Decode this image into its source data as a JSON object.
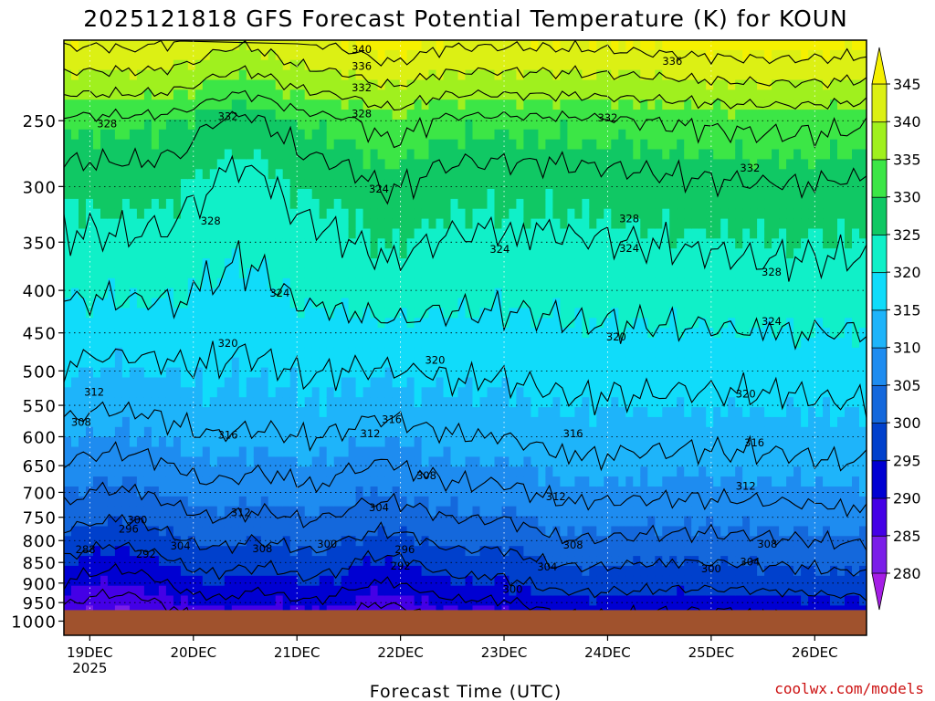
{
  "chart_data": {
    "type": "heatmap",
    "title": "2025121818 GFS Forecast Potential Temperature (K) for KOUN",
    "xlabel": "Forecast Time (UTC)",
    "ylabel": "",
    "credit": "coolwx.com/models",
    "x_ticks": [
      {
        "label": "19DEC",
        "sublabel": "2025"
      },
      {
        "label": "20DEC",
        "sublabel": ""
      },
      {
        "label": "21DEC",
        "sublabel": ""
      },
      {
        "label": "22DEC",
        "sublabel": ""
      },
      {
        "label": "23DEC",
        "sublabel": ""
      },
      {
        "label": "24DEC",
        "sublabel": ""
      },
      {
        "label": "25DEC",
        "sublabel": ""
      },
      {
        "label": "26DEC",
        "sublabel": ""
      }
    ],
    "x_range_hours": [
      -6,
      180
    ],
    "x_tick_hours": [
      0,
      24,
      48,
      72,
      96,
      120,
      144,
      168
    ],
    "y_ticks": [
      250,
      300,
      350,
      400,
      450,
      500,
      550,
      600,
      650,
      700,
      750,
      800,
      850,
      900,
      950,
      1000
    ],
    "y_axis": "pressure (hPa), log scale, reversed",
    "y_range_hpa": [
      200,
      1040
    ],
    "surface_pressure_hpa": 970,
    "colorbar": {
      "levels": [
        280,
        285,
        290,
        295,
        300,
        305,
        310,
        315,
        320,
        325,
        330,
        335,
        340,
        345
      ],
      "colors": [
        "#a51ee6",
        "#7a1ee8",
        "#4400e6",
        "#0000d2",
        "#0040cc",
        "#1468dc",
        "#1e8cf0",
        "#1eb4fa",
        "#10dcfa",
        "#10f0c8",
        "#10c864",
        "#3ce646",
        "#a0f01e",
        "#dcf014",
        "#f5f000"
      ],
      "extend": "both"
    },
    "contour_interval_K": 4,
    "contour_labels": [
      {
        "value": "340",
        "hour": 63,
        "p": 205
      },
      {
        "value": "336",
        "hour": 63,
        "p": 215
      },
      {
        "value": "336",
        "hour": 135,
        "p": 212
      },
      {
        "value": "332",
        "hour": 63,
        "p": 228
      },
      {
        "value": "332",
        "hour": 32,
        "p": 247
      },
      {
        "value": "332",
        "hour": 120,
        "p": 248
      },
      {
        "value": "332",
        "hour": 153,
        "p": 285
      },
      {
        "value": "328",
        "hour": 4,
        "p": 252
      },
      {
        "value": "328",
        "hour": 63,
        "p": 245
      },
      {
        "value": "328",
        "hour": 28,
        "p": 330
      },
      {
        "value": "328",
        "hour": 125,
        "p": 328
      },
      {
        "value": "328",
        "hour": 158,
        "p": 380
      },
      {
        "value": "324",
        "hour": 67,
        "p": 302
      },
      {
        "value": "324",
        "hour": 95,
        "p": 357
      },
      {
        "value": "324",
        "hour": 125,
        "p": 356
      },
      {
        "value": "324",
        "hour": 44,
        "p": 403
      },
      {
        "value": "324",
        "hour": 158,
        "p": 436
      },
      {
        "value": "320",
        "hour": 32,
        "p": 463
      },
      {
        "value": "320",
        "hour": 80,
        "p": 485
      },
      {
        "value": "320",
        "hour": 122,
        "p": 455
      },
      {
        "value": "320",
        "hour": 152,
        "p": 533
      },
      {
        "value": "316",
        "hour": 70,
        "p": 572
      },
      {
        "value": "316",
        "hour": 32,
        "p": 597
      },
      {
        "value": "316",
        "hour": 112,
        "p": 595
      },
      {
        "value": "316",
        "hour": 154,
        "p": 610
      },
      {
        "value": "312",
        "hour": 1,
        "p": 530
      },
      {
        "value": "312",
        "hour": 65,
        "p": 595
      },
      {
        "value": "312",
        "hour": 35,
        "p": 740
      },
      {
        "value": "312",
        "hour": 108,
        "p": 708
      },
      {
        "value": "312",
        "hour": 152,
        "p": 688
      },
      {
        "value": "308",
        "hour": -2,
        "p": 576
      },
      {
        "value": "308",
        "hour": 78,
        "p": 668
      },
      {
        "value": "308",
        "hour": 40,
        "p": 818
      },
      {
        "value": "308",
        "hour": 112,
        "p": 810
      },
      {
        "value": "308",
        "hour": 157,
        "p": 808
      },
      {
        "value": "304",
        "hour": 67,
        "p": 730
      },
      {
        "value": "304",
        "hour": 21,
        "p": 812
      },
      {
        "value": "304",
        "hour": 106,
        "p": 860
      },
      {
        "value": "304",
        "hour": 153,
        "p": 848
      },
      {
        "value": "300",
        "hour": 11,
        "p": 755
      },
      {
        "value": "300",
        "hour": 55,
        "p": 808
      },
      {
        "value": "300",
        "hour": 98,
        "p": 915
      },
      {
        "value": "300",
        "hour": 144,
        "p": 865
      },
      {
        "value": "296",
        "hour": 9,
        "p": 775
      },
      {
        "value": "296",
        "hour": 73,
        "p": 820
      },
      {
        "value": "292",
        "hour": 13,
        "p": 830
      },
      {
        "value": "292",
        "hour": 72,
        "p": 858
      },
      {
        "value": "288",
        "hour": -1,
        "p": 820
      }
    ]
  }
}
